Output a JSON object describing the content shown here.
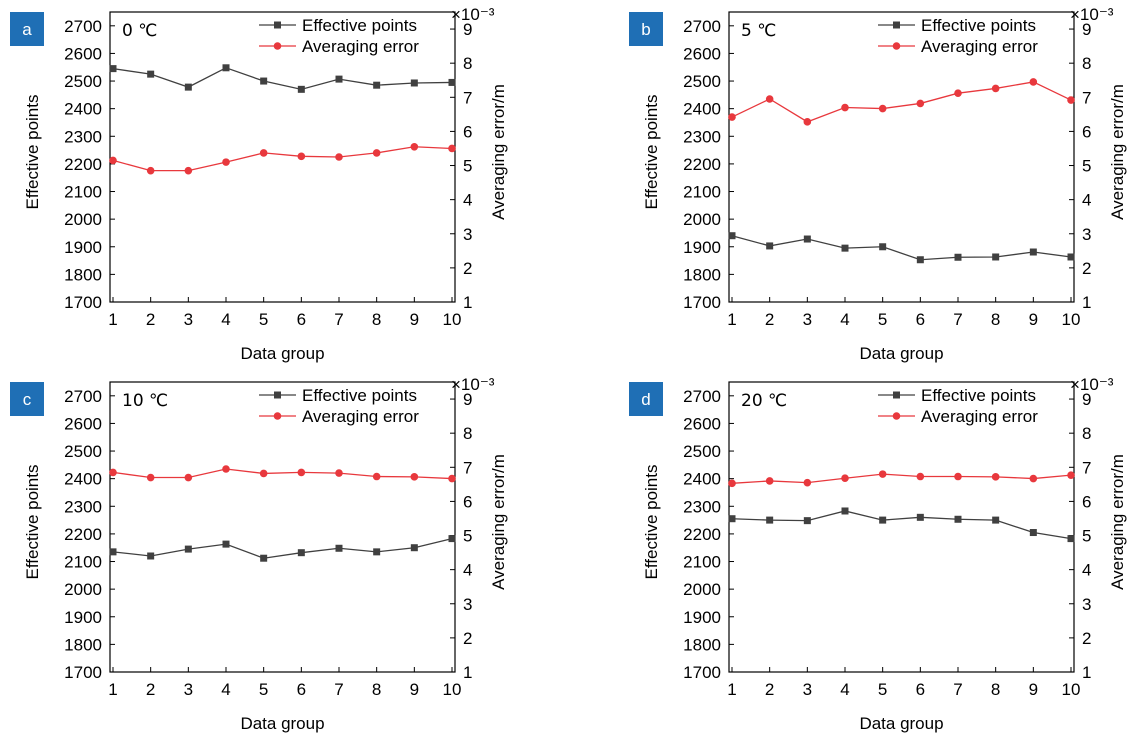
{
  "colors": {
    "effective": "#404040",
    "error": "#e8383d",
    "badge": "#1f6fb5"
  },
  "chart_data": [
    {
      "type": "line",
      "panel": "a",
      "annotation": "0 ℃",
      "xlabel": "Data group",
      "ylabel_left": "Effective points",
      "ylabel_right": "Averaging error/m",
      "right_scale": "×10⁻³",
      "x": [
        1,
        2,
        3,
        4,
        5,
        6,
        7,
        8,
        9,
        10
      ],
      "ylim_left": [
        1700,
        2750
      ],
      "ylim_right": [
        1,
        9.5
      ],
      "yticks_left": [
        1700,
        1800,
        1900,
        2000,
        2100,
        2200,
        2300,
        2400,
        2500,
        2600,
        2700
      ],
      "yticks_right": [
        1,
        2,
        3,
        4,
        5,
        6,
        7,
        8,
        9
      ],
      "legend_position": "top-right",
      "series": [
        {
          "name": "Effective points",
          "axis": "left",
          "marker": "square",
          "values": [
            2545,
            2525,
            2478,
            2548,
            2500,
            2470,
            2507,
            2485,
            2493,
            2495
          ]
        },
        {
          "name": "Averaging error",
          "axis": "right",
          "marker": "circle",
          "values": [
            5.15,
            4.85,
            4.85,
            5.1,
            5.37,
            5.27,
            5.25,
            5.37,
            5.55,
            5.5
          ]
        }
      ]
    },
    {
      "type": "line",
      "panel": "b",
      "annotation": "5 ℃",
      "xlabel": "Data group",
      "ylabel_left": "Effective points",
      "ylabel_right": "Averaging error/m",
      "right_scale": "×10⁻³",
      "x": [
        1,
        2,
        3,
        4,
        5,
        6,
        7,
        8,
        9,
        10
      ],
      "ylim_left": [
        1700,
        2750
      ],
      "ylim_right": [
        1,
        9.5
      ],
      "yticks_left": [
        1700,
        1800,
        1900,
        2000,
        2100,
        2200,
        2300,
        2400,
        2500,
        2600,
        2700
      ],
      "yticks_right": [
        1,
        2,
        3,
        4,
        5,
        6,
        7,
        8,
        9
      ],
      "legend_position": "top-right",
      "series": [
        {
          "name": "Effective points",
          "axis": "left",
          "marker": "square",
          "values": [
            1940,
            1903,
            1928,
            1895,
            1900,
            1853,
            1862,
            1863,
            1881,
            1863
          ]
        },
        {
          "name": "Averaging error",
          "axis": "right",
          "marker": "circle",
          "values": [
            6.42,
            6.95,
            6.28,
            6.7,
            6.67,
            6.82,
            7.12,
            7.26,
            7.45,
            6.92
          ]
        }
      ]
    },
    {
      "type": "line",
      "panel": "c",
      "annotation": "10 ℃",
      "xlabel": "Data group",
      "ylabel_left": "Effective points",
      "ylabel_right": "Averaging error/m",
      "right_scale": "×10⁻³",
      "x": [
        1,
        2,
        3,
        4,
        5,
        6,
        7,
        8,
        9,
        10
      ],
      "ylim_left": [
        1700,
        2750
      ],
      "ylim_right": [
        1,
        9.5
      ],
      "yticks_left": [
        1700,
        1800,
        1900,
        2000,
        2100,
        2200,
        2300,
        2400,
        2500,
        2600,
        2700
      ],
      "yticks_right": [
        1,
        2,
        3,
        4,
        5,
        6,
        7,
        8,
        9
      ],
      "legend_position": "top-right",
      "series": [
        {
          "name": "Effective points",
          "axis": "left",
          "marker": "square",
          "values": [
            2135,
            2120,
            2145,
            2163,
            2112,
            2132,
            2148,
            2135,
            2150,
            2183
          ]
        },
        {
          "name": "Averaging error",
          "axis": "right",
          "marker": "circle",
          "values": [
            6.85,
            6.7,
            6.7,
            6.95,
            6.82,
            6.85,
            6.83,
            6.73,
            6.72,
            6.67
          ]
        }
      ]
    },
    {
      "type": "line",
      "panel": "d",
      "annotation": "20 ℃",
      "xlabel": "Data group",
      "ylabel_left": "Effective points",
      "ylabel_right": "Averaging error/m",
      "right_scale": "×10⁻³",
      "x": [
        1,
        2,
        3,
        4,
        5,
        6,
        7,
        8,
        9,
        10
      ],
      "ylim_left": [
        1700,
        2750
      ],
      "ylim_right": [
        1,
        9.5
      ],
      "yticks_left": [
        1700,
        1800,
        1900,
        2000,
        2100,
        2200,
        2300,
        2400,
        2500,
        2600,
        2700
      ],
      "yticks_right": [
        1,
        2,
        3,
        4,
        5,
        6,
        7,
        8,
        9
      ],
      "legend_position": "top-right",
      "series": [
        {
          "name": "Effective points",
          "axis": "left",
          "marker": "square",
          "values": [
            2255,
            2250,
            2248,
            2283,
            2250,
            2260,
            2253,
            2250,
            2205,
            2183
          ]
        },
        {
          "name": "Averaging error",
          "axis": "right",
          "marker": "circle",
          "values": [
            6.53,
            6.6,
            6.55,
            6.68,
            6.8,
            6.73,
            6.73,
            6.72,
            6.67,
            6.77
          ]
        }
      ]
    }
  ]
}
